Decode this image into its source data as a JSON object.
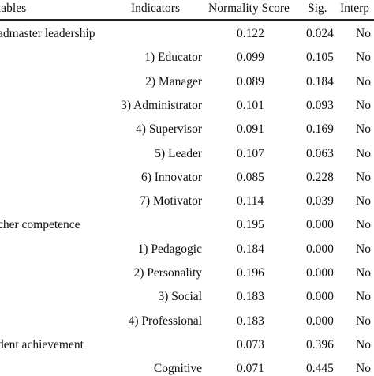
{
  "headers": {
    "variables": "iables",
    "indicators": "Indicators",
    "normality_score": "Normality Score",
    "sig": "Sig.",
    "interpretation": "Interp"
  },
  "rows": [
    {
      "variable": "admaster leadership",
      "indicator": "",
      "score": "0.122",
      "sig": "0.024",
      "interp": "No"
    },
    {
      "variable": "",
      "indicator": "1) Educator",
      "score": "0.099",
      "sig": "0.105",
      "interp": "No"
    },
    {
      "variable": "",
      "indicator": "2) Manager",
      "score": "0.089",
      "sig": "0.184",
      "interp": "No"
    },
    {
      "variable": "",
      "indicator": "3) Administrator",
      "score": "0.101",
      "sig": "0.093",
      "interp": "No"
    },
    {
      "variable": "",
      "indicator": "4) Supervisor",
      "score": "0.091",
      "sig": "0.169",
      "interp": "No"
    },
    {
      "variable": "",
      "indicator": "5) Leader",
      "score": "0.107",
      "sig": "0.063",
      "interp": "No"
    },
    {
      "variable": "",
      "indicator": "6) Innovator",
      "score": "0.085",
      "sig": "0.228",
      "interp": "No"
    },
    {
      "variable": "",
      "indicator": "7) Motivator",
      "score": "0.114",
      "sig": "0.039",
      "interp": "No"
    },
    {
      "variable": "cher competence",
      "indicator": "",
      "score": "0.195",
      "sig": "0.000",
      "interp": "No"
    },
    {
      "variable": "",
      "indicator": "1) Pedagogic",
      "score": "0.184",
      "sig": "0.000",
      "interp": "No"
    },
    {
      "variable": "",
      "indicator": "2) Personality",
      "score": "0.196",
      "sig": "0.000",
      "interp": "No"
    },
    {
      "variable": "",
      "indicator": "3) Social",
      "score": "0.183",
      "sig": "0.000",
      "interp": "No"
    },
    {
      "variable": "",
      "indicator": "4) Professional",
      "score": "0.183",
      "sig": "0.000",
      "interp": "No"
    },
    {
      "variable": "dent achievement",
      "indicator": "",
      "score": "0.073",
      "sig": "0.396",
      "interp": "No"
    },
    {
      "variable": "",
      "indicator": "Cognitive",
      "score": "0.071",
      "sig": "0.445",
      "interp": "No"
    }
  ]
}
